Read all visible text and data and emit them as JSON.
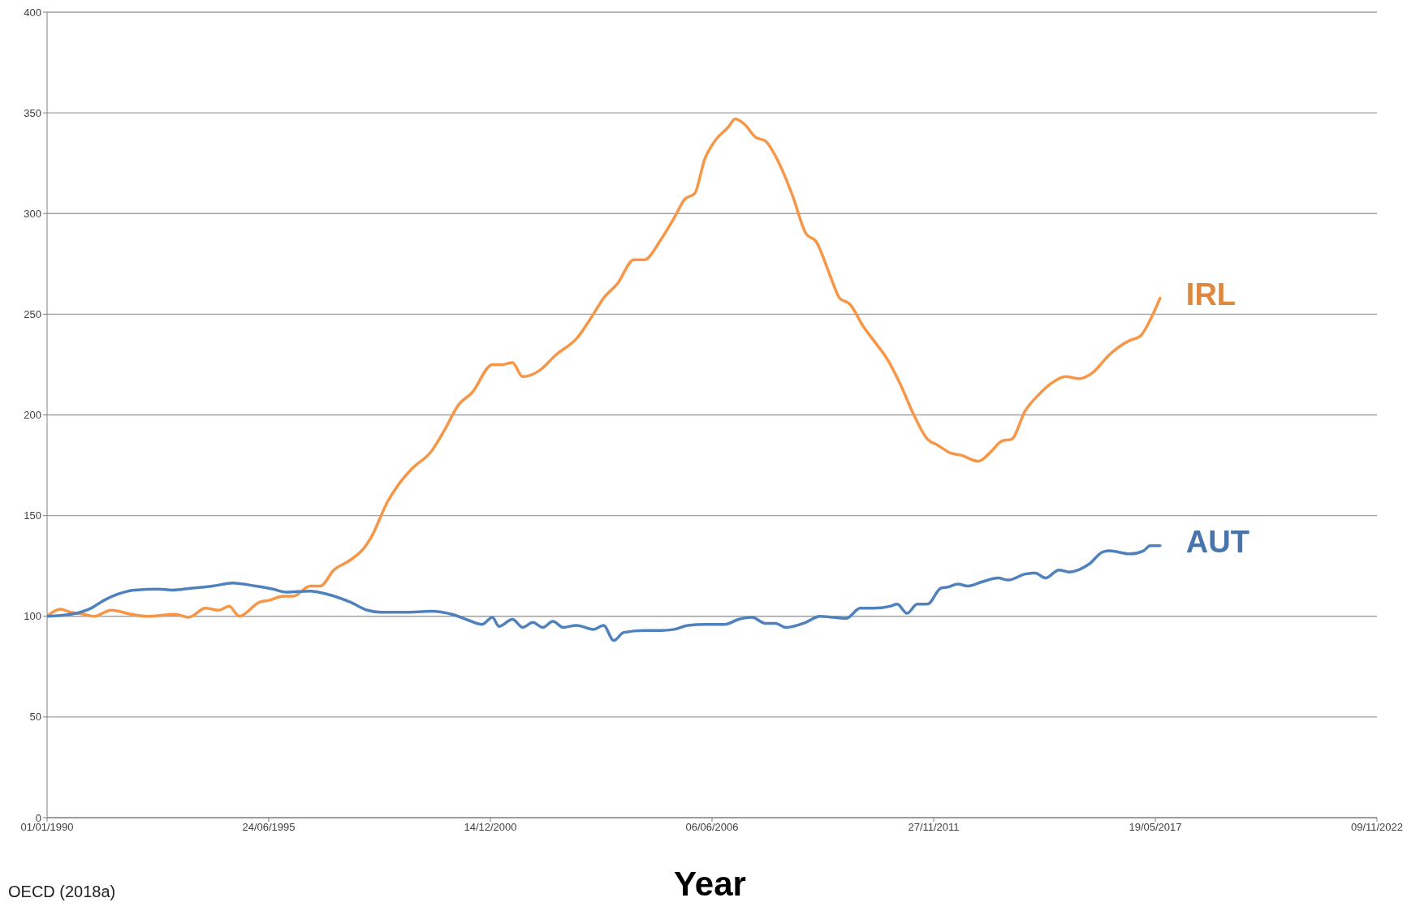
{
  "chart_data": {
    "type": "line",
    "xlabel": "Year",
    "annotations": [
      "OECD (2018a)"
    ],
    "xlim": [
      "1990-01-01",
      "2022-11-09"
    ],
    "xticks": [
      {
        "value": "1990-01-01",
        "label": "01/01/1990"
      },
      {
        "value": "1995-06-24",
        "label": "24/06/1995"
      },
      {
        "value": "2000-12-14",
        "label": "14/12/2000"
      },
      {
        "value": "2006-06-06",
        "label": "06/06/2006"
      },
      {
        "value": "2011-11-27",
        "label": "27/11/2011"
      },
      {
        "value": "2017-05-19",
        "label": "19/05/2017"
      },
      {
        "value": "2022-11-09",
        "label": "09/11/2022"
      }
    ],
    "ylim": [
      0,
      400
    ],
    "yticks": [
      0,
      50,
      100,
      150,
      200,
      250,
      300,
      350,
      400
    ],
    "grid": "y",
    "legend": false,
    "marker": "none",
    "line_style": "solid",
    "series": [
      {
        "name": "IRL",
        "color": "#f79646",
        "x": [
          "1990-01",
          "1990-05",
          "1990-08",
          "1990-12",
          "1991-03",
          "1991-08",
          "1992-02",
          "1992-07",
          "1993-03",
          "1993-07",
          "1993-12",
          "1994-04",
          "1994-07",
          "1994-10",
          "1995-04",
          "1995-07",
          "1995-11",
          "1996-02",
          "1996-07",
          "1996-10",
          "1997-02",
          "1997-07",
          "1997-11",
          "1998-01",
          "1998-06",
          "1998-09",
          "1999-01",
          "1999-07",
          "1999-11",
          "2000-03",
          "2000-07",
          "2001-01",
          "2001-04",
          "2001-07",
          "2001-10",
          "2002-03",
          "2002-08",
          "2003-02",
          "2003-07",
          "2003-10",
          "2004-02",
          "2004-07",
          "2004-10",
          "2005-03",
          "2005-07",
          "2005-10",
          "2006-01",
          "2006-04",
          "2006-07",
          "2006-11",
          "2007-01",
          "2007-04",
          "2007-07",
          "2007-10",
          "2008-02",
          "2008-06",
          "2008-10",
          "2009-01",
          "2009-05",
          "2009-08",
          "2009-11",
          "2010-03",
          "2010-07",
          "2010-10",
          "2011-02",
          "2011-06",
          "2011-10",
          "2012-01",
          "2012-05",
          "2012-08",
          "2013-01",
          "2013-05",
          "2013-08",
          "2013-11",
          "2014-03",
          "2014-07",
          "2014-11",
          "2015-03",
          "2015-07",
          "2015-11",
          "2016-04",
          "2016-10",
          "2017-01",
          "2017-04",
          "2017-07"
        ],
        "values": [
          100,
          103.5,
          102,
          101,
          100,
          103,
          101,
          100,
          101,
          99.5,
          104,
          103,
          105,
          100,
          107,
          108,
          110,
          110,
          115,
          115,
          123,
          128,
          134,
          139,
          157,
          165,
          173,
          182,
          193,
          205,
          211,
          225,
          225,
          226,
          219,
          222,
          230,
          238,
          250,
          258,
          265,
          277,
          277,
          287,
          298,
          307,
          310,
          327,
          336,
          343,
          347,
          344,
          338,
          336,
          325,
          309,
          290,
          286,
          270,
          258,
          255,
          244,
          235,
          228,
          215,
          200,
          188,
          185,
          181,
          180,
          177,
          182,
          187,
          188,
          202,
          210,
          216,
          219,
          218,
          221,
          230,
          237,
          239,
          247,
          258
        ]
      },
      {
        "name": "AUT",
        "color": "#4f81bd",
        "x": [
          "1990-01",
          "1990-08",
          "1991-02",
          "1991-06",
          "1991-10",
          "1992-03",
          "1992-10",
          "1993-02",
          "1993-08",
          "1994-02",
          "1994-08",
          "1995-03",
          "1995-08",
          "1995-12",
          "1996-07",
          "1996-12",
          "1997-07",
          "1997-12",
          "1998-04",
          "1998-11",
          "1999-07",
          "2000-01",
          "2000-06",
          "2000-10",
          "2001-01",
          "2001-03",
          "2001-07",
          "2001-10",
          "2002-01",
          "2002-04",
          "2002-07",
          "2002-10",
          "2003-02",
          "2003-07",
          "2003-10",
          "2004-01",
          "2004-04",
          "2004-10",
          "2005-03",
          "2005-07",
          "2005-11",
          "2006-04",
          "2006-10",
          "2007-02",
          "2007-06",
          "2007-10",
          "2008-01",
          "2008-04",
          "2008-10",
          "2009-02",
          "2009-10",
          "2010-02",
          "2010-06",
          "2010-11",
          "2011-01",
          "2011-04",
          "2011-07",
          "2011-10",
          "2012-02",
          "2012-04",
          "2012-07",
          "2012-10",
          "2013-02",
          "2013-07",
          "2013-10",
          "2014-03",
          "2014-06",
          "2014-09",
          "2015-01",
          "2015-04",
          "2015-10",
          "2016-02",
          "2016-04",
          "2016-10",
          "2017-02",
          "2017-04",
          "2017-07"
        ],
        "values": [
          100,
          101,
          104,
          108,
          111,
          113,
          113.5,
          113,
          114,
          115,
          116.5,
          115,
          113.5,
          112,
          112.5,
          111,
          107,
          103,
          102,
          102,
          102.5,
          101,
          98,
          96,
          99.5,
          95,
          98.5,
          94.5,
          97,
          94.5,
          97.5,
          94.5,
          95.5,
          93.5,
          95.5,
          88,
          92,
          93,
          93,
          93.5,
          95.5,
          96,
          96,
          98.5,
          99.5,
          96.5,
          96.5,
          94.5,
          97,
          100,
          99,
          104,
          104,
          105,
          106,
          101.5,
          106,
          106,
          114,
          114.5,
          116,
          115,
          117,
          119,
          118,
          121,
          121.5,
          119,
          123,
          122,
          126,
          132,
          132.5,
          131,
          132.5,
          135,
          135
        ]
      }
    ]
  }
}
